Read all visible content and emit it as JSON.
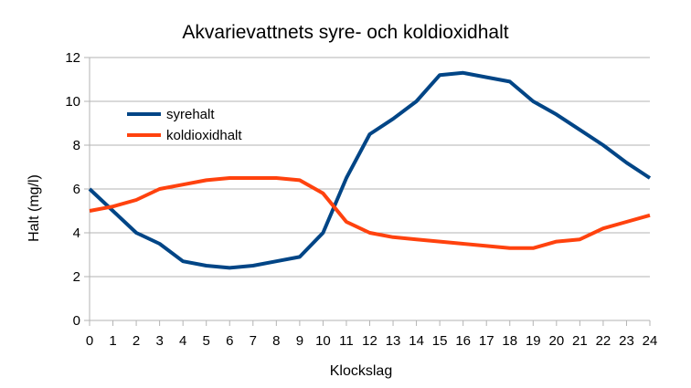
{
  "chart_data": {
    "type": "line",
    "title": "Akvarievattnets syre- och koldioxidhalt",
    "xlabel": "Klockslag",
    "ylabel": "Halt (mg/l)",
    "x": [
      0,
      1,
      2,
      3,
      4,
      5,
      6,
      7,
      8,
      9,
      10,
      11,
      12,
      13,
      14,
      15,
      16,
      17,
      18,
      19,
      20,
      21,
      22,
      23,
      24
    ],
    "xlim": [
      0,
      24
    ],
    "ylim": [
      0,
      12
    ],
    "yticks": [
      0,
      2,
      4,
      6,
      8,
      10,
      12
    ],
    "grid": "horizontal",
    "legend": "upper-left inside",
    "series": [
      {
        "name": "syrehalt",
        "color": "#004586",
        "values": [
          6.0,
          5.0,
          4.0,
          3.5,
          2.7,
          2.5,
          2.4,
          2.5,
          2.7,
          2.9,
          4.0,
          6.5,
          8.5,
          9.2,
          10.0,
          11.2,
          11.3,
          11.1,
          10.9,
          10.0,
          9.4,
          8.7,
          8.0,
          7.2,
          6.5
        ]
      },
      {
        "name": "koldioxidhalt",
        "color": "#ff420e",
        "values": [
          5.0,
          5.2,
          5.5,
          6.0,
          6.2,
          6.4,
          6.5,
          6.5,
          6.5,
          6.4,
          5.8,
          4.5,
          4.0,
          3.8,
          3.7,
          3.6,
          3.5,
          3.4,
          3.3,
          3.3,
          3.6,
          3.7,
          4.2,
          4.5,
          4.8
        ]
      }
    ]
  }
}
